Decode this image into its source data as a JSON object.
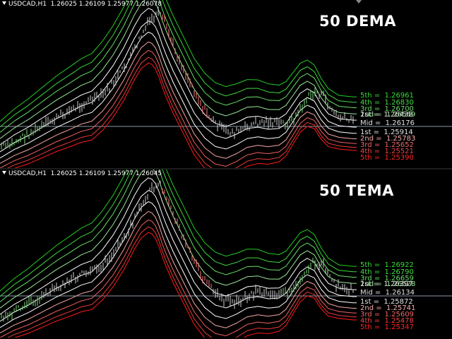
{
  "panels": [
    {
      "header": "USDCAD,H1  1.26025 1.26109 1.25977 1.26078",
      "title": "50 DEMA",
      "levels": [
        {
          "label": "5th",
          "value": "1.26961",
          "color": "#33dd33"
        },
        {
          "label": "4th",
          "value": "1.26830",
          "color": "#44dd44"
        },
        {
          "label": "3rd",
          "value": "1.26700",
          "color": "#66dd66"
        },
        {
          "label": "2nd",
          "value": "1.26569",
          "color": "#99e699"
        },
        {
          "label": "1st",
          "value": "1.26438",
          "color": "#e0e0e0"
        },
        {
          "label": "Mid",
          "value": "1.26176",
          "color": "#e0e0e0"
        },
        {
          "label": "1st",
          "value": "1.25914",
          "color": "#e0e0e0"
        },
        {
          "label": "2nd",
          "value": "1.25783",
          "color": "#f2aaaa"
        },
        {
          "label": "3rd",
          "value": "1.25652",
          "color": "#ee6666"
        },
        {
          "label": "4th",
          "value": "1.25521",
          "color": "#ee4444"
        },
        {
          "label": "5th",
          "value": "1.25390",
          "color": "#ff2222"
        }
      ]
    },
    {
      "header": "USDCAD,H1  1.26025 1.26109 1.25977 1.26045",
      "title": "50 TEMA",
      "levels": [
        {
          "label": "5th",
          "value": "1.26922",
          "color": "#33dd33"
        },
        {
          "label": "4th",
          "value": "1.26790",
          "color": "#44dd44"
        },
        {
          "label": "3rd",
          "value": "1.26659",
          "color": "#66dd66"
        },
        {
          "label": "2nd",
          "value": "1.26528",
          "color": "#99e699"
        },
        {
          "label": "1st",
          "value": "1.26397",
          "color": "#e0e0e0"
        },
        {
          "label": "Mid",
          "value": "1.26134",
          "color": "#e0e0e0"
        },
        {
          "label": "1st",
          "value": "1.25872",
          "color": "#e0e0e0"
        },
        {
          "label": "2nd",
          "value": "1.25741",
          "color": "#f2aaaa"
        },
        {
          "label": "3rd",
          "value": "1.25609",
          "color": "#ee6666"
        },
        {
          "label": "4th",
          "value": "1.25478",
          "color": "#ee4444"
        },
        {
          "label": "5th",
          "value": "1.25347",
          "color": "#ff2222"
        }
      ]
    }
  ]
}
